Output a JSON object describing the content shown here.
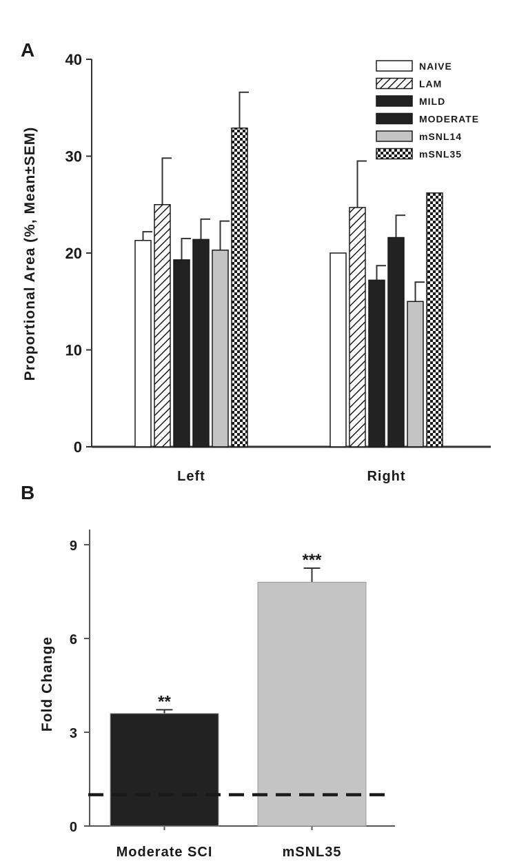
{
  "panels": [
    {
      "letter": "A",
      "chart_data": {
        "type": "bar",
        "categories": [
          "Left",
          "Right"
        ],
        "ylabel": "Proportional Area (%, Mean±SEM)",
        "xlabel": "",
        "ylim": [
          0,
          40
        ],
        "yticks": [
          0,
          10,
          20,
          30,
          40
        ],
        "legend_position": "top-right",
        "series": [
          {
            "name": "NAIVE",
            "values": [
              21.3,
              20.0
            ],
            "errors": [
              0.9,
              0.0
            ],
            "fill": "white"
          },
          {
            "name": "LAM",
            "values": [
              25.0,
              24.7
            ],
            "errors": [
              4.8,
              4.8
            ],
            "fill": "hatch"
          },
          {
            "name": "MILD",
            "values": [
              19.3,
              17.2
            ],
            "errors": [
              2.2,
              1.5
            ],
            "fill": "#222222"
          },
          {
            "name": "MODERATE",
            "values": [
              21.4,
              21.6
            ],
            "errors": [
              2.1,
              2.3
            ],
            "fill": "#222222"
          },
          {
            "name": "mSNL14",
            "values": [
              20.3,
              15.0
            ],
            "errors": [
              3.0,
              2.0
            ],
            "fill": "#c4c4c4"
          },
          {
            "name": "mSNL35",
            "values": [
              32.9,
              26.2
            ],
            "errors": [
              3.7,
              0.0
            ],
            "fill": "checker"
          }
        ]
      }
    },
    {
      "letter": "B",
      "chart_data": {
        "type": "bar",
        "categories": [
          "Moderate SCI",
          "mSNL35"
        ],
        "values": [
          3.6,
          7.8
        ],
        "errors": [
          0.12,
          0.45
        ],
        "colors": [
          "#222222",
          "#c4c4c4"
        ],
        "significance": [
          "**",
          "***"
        ],
        "ylabel": "Fold Change",
        "xlabel": "",
        "ylim": [
          0,
          9
        ],
        "yticks": [
          0,
          3,
          6,
          9
        ],
        "reference_line": 1.0
      }
    }
  ]
}
